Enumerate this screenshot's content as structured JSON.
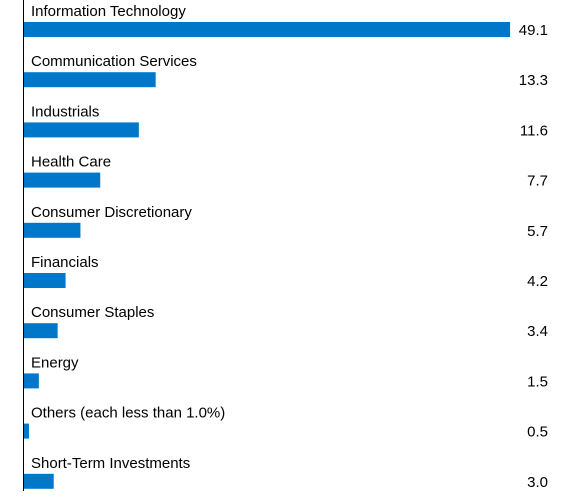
{
  "chart_data": {
    "type": "bar",
    "orientation": "horizontal",
    "categories": [
      "Information Technology",
      "Communication Services",
      "Industrials",
      "Health Care",
      "Consumer Discretionary",
      "Financials",
      "Consumer Staples",
      "Energy",
      "Others (each less than 1.0%)",
      "Short-Term Investments"
    ],
    "values": [
      49.1,
      13.3,
      11.6,
      7.7,
      5.7,
      4.2,
      3.4,
      1.5,
      0.5,
      3.0
    ],
    "value_labels": [
      "49.1",
      "13.3",
      "11.6",
      "7.7",
      "5.7",
      "4.2",
      "3.4",
      "1.5",
      "0.5",
      "3.0"
    ],
    "color": "#0077c8"
  }
}
